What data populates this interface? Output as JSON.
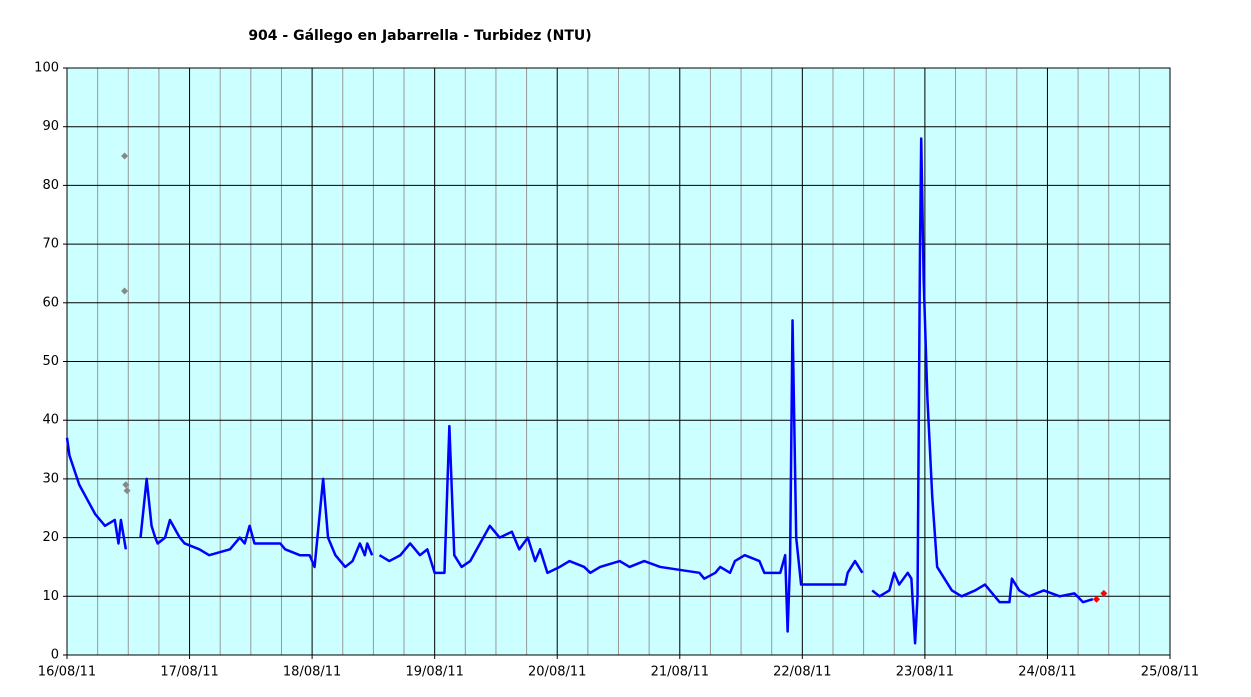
{
  "chart_data": {
    "type": "line",
    "title": "904 - Gállego en Jabarrella - Turbidez (NTU)",
    "xlim": [
      16,
      25
    ],
    "ylim": [
      0,
      100
    ],
    "xticks": [
      {
        "value": 16,
        "label": "16/08/11"
      },
      {
        "value": 17,
        "label": "17/08/11"
      },
      {
        "value": 18,
        "label": "18/08/11"
      },
      {
        "value": 19,
        "label": "19/08/11"
      },
      {
        "value": 20,
        "label": "20/08/11"
      },
      {
        "value": 21,
        "label": "21/08/11"
      },
      {
        "value": 22,
        "label": "22/08/11"
      },
      {
        "value": 23,
        "label": "23/08/11"
      },
      {
        "value": 24,
        "label": "24/08/11"
      },
      {
        "value": 25,
        "label": "25/08/11"
      }
    ],
    "xminor": [
      16.25,
      16.5,
      16.75,
      17.25,
      17.5,
      17.75,
      18.25,
      18.5,
      18.75,
      19.25,
      19.5,
      19.75,
      20.25,
      20.5,
      20.75,
      21.25,
      21.5,
      21.75,
      22.25,
      22.5,
      22.75,
      23.25,
      23.5,
      23.75,
      24.25,
      24.5,
      24.75
    ],
    "yticks": [
      0,
      10,
      20,
      30,
      40,
      50,
      60,
      70,
      80,
      90,
      100
    ],
    "grid": true,
    "background": "#ccffff",
    "series": [
      {
        "type": "line",
        "color": "#0000ff",
        "x": [
          16.0,
          16.02,
          16.1,
          16.23,
          16.31,
          16.39,
          16.42,
          16.44,
          16.48,
          16.54,
          16.6,
          16.65,
          16.69,
          16.72,
          16.74,
          16.8,
          16.84,
          16.92,
          16.96,
          17.08,
          17.16,
          17.33,
          17.41,
          17.45,
          17.49,
          17.53,
          17.74,
          17.78,
          17.9,
          17.98,
          18.02,
          18.09,
          18.13,
          18.19,
          18.27,
          18.33,
          18.39,
          18.43,
          18.45,
          18.49,
          18.52,
          18.55,
          18.63,
          18.72,
          18.8,
          18.88,
          18.94,
          19.0,
          19.08,
          19.12,
          19.16,
          19.22,
          19.29,
          19.37,
          19.45,
          19.53,
          19.63,
          19.69,
          19.76,
          19.82,
          19.86,
          19.92,
          20.02,
          20.1,
          20.22,
          20.27,
          20.35,
          20.51,
          20.59,
          20.71,
          20.84,
          21.16,
          21.2,
          21.29,
          21.33,
          21.41,
          21.45,
          21.53,
          21.65,
          21.69,
          21.82,
          21.86,
          21.88,
          21.9,
          21.92,
          21.95,
          21.99,
          22.35,
          22.37,
          22.43,
          22.49,
          22.53,
          22.57,
          22.63,
          22.71,
          22.75,
          22.79,
          22.86,
          22.89,
          22.92,
          22.94,
          22.96,
          22.97,
          22.99,
          23.02,
          23.06,
          23.1,
          23.16,
          23.22,
          23.3,
          23.41,
          23.49,
          23.57,
          23.61,
          23.69,
          23.71,
          23.77,
          23.85,
          23.97,
          24.1,
          24.22,
          24.29,
          24.37
        ],
        "values": [
          37,
          34,
          29,
          24,
          22,
          23,
          19,
          23,
          18,
          null,
          20,
          30,
          22,
          20,
          19,
          20,
          23,
          20,
          19,
          18,
          17,
          18,
          20,
          19,
          22,
          19,
          19,
          18,
          17,
          17,
          15,
          30,
          20,
          17,
          15,
          16,
          19,
          17,
          19,
          17,
          null,
          17,
          16,
          17,
          19,
          17,
          18,
          14,
          14,
          39,
          17,
          15,
          16,
          19,
          22,
          20,
          21,
          18,
          20,
          16,
          18,
          14,
          15,
          16,
          15,
          14,
          15,
          16,
          15,
          16,
          15,
          14,
          13,
          14,
          15,
          14,
          16,
          17,
          16,
          14,
          14,
          17,
          4,
          16,
          57,
          20,
          12,
          12,
          14,
          16,
          14,
          null,
          11,
          10,
          11,
          14,
          12,
          14,
          13,
          2,
          10,
          69,
          88,
          64,
          44,
          27,
          15,
          13,
          11,
          10,
          11,
          12,
          10,
          9,
          9,
          13,
          11,
          10,
          11,
          10,
          10.5,
          9,
          9.5
        ]
      },
      {
        "type": "scatter",
        "color": "#888888",
        "x": [
          16.47,
          16.47,
          16.48,
          16.49
        ],
        "values": [
          85,
          62,
          29,
          28
        ]
      },
      {
        "type": "scatter",
        "color": "#ff0000",
        "x": [
          24.4,
          24.46
        ],
        "values": [
          9.5,
          10.5
        ]
      }
    ]
  }
}
